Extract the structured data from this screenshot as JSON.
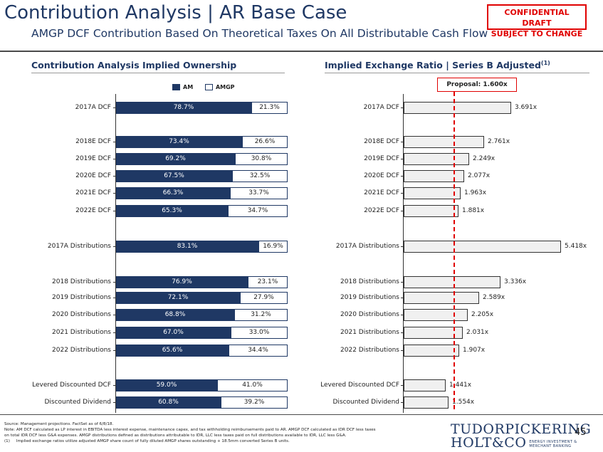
{
  "header": {
    "title": "Contribution Analysis | AR Base Case",
    "subtitle": "AMGP DCF Contribution Based On Theoretical Taxes On All Distributable Cash Flow",
    "confidential_line1": "CONFIDENTIAL DRAFT",
    "confidential_line2": "SUBJECT TO CHANGE"
  },
  "left_section": {
    "title": "Contribution Analysis Implied Ownership",
    "legend": [
      "AM",
      "AMGP"
    ]
  },
  "right_section": {
    "title": "Implied Exchange Ratio | Series B Adjusted",
    "title_sup": "(1)",
    "proposal": "Proposal: 1.600x"
  },
  "chart_data": [
    {
      "type": "bar",
      "stacked": true,
      "orientation": "horizontal",
      "title": "Contribution Analysis Implied Ownership",
      "categories": [
        "2017A DCF",
        "2018E DCF",
        "2019E DCF",
        "2020E DCF",
        "2021E DCF",
        "2022E DCF",
        "2017A Distributions",
        "2018 Distributions",
        "2019 Distributions",
        "2020 Distributions",
        "2021 Distributions",
        "2022 Distributions",
        "Levered Discounted DCF",
        "Discounted Dividend"
      ],
      "series": [
        {
          "name": "AM",
          "values": [
            78.7,
            73.4,
            69.2,
            67.5,
            66.3,
            65.3,
            83.1,
            76.9,
            72.1,
            68.8,
            67.0,
            65.6,
            59.0,
            60.8
          ],
          "color": "#1f3864"
        },
        {
          "name": "AMGP",
          "values": [
            21.3,
            26.6,
            30.8,
            32.5,
            33.7,
            34.7,
            16.9,
            23.1,
            27.9,
            31.2,
            33.0,
            34.4,
            41.0,
            39.2
          ],
          "color": "#ffffff"
        }
      ],
      "labels": {
        "am": [
          "78.7%",
          "73.4%",
          "69.2%",
          "67.5%",
          "66.3%",
          "65.3%",
          "83.1%",
          "76.9%",
          "72.1%",
          "68.8%",
          "67.0%",
          "65.6%",
          "59.0%",
          "60.8%"
        ],
        "amgp": [
          "21.3%",
          "26.6%",
          "30.8%",
          "32.5%",
          "33.7%",
          "34.7%",
          "16.9%",
          "23.1%",
          "27.9%",
          "31.2%",
          "33.0%",
          "34.4%",
          "41.0%",
          "39.2%"
        ]
      },
      "xlim": [
        0,
        100
      ],
      "legend_position": "top"
    },
    {
      "type": "bar",
      "orientation": "horizontal",
      "title": "Implied Exchange Ratio | Series B Adjusted",
      "categories": [
        "2017A DCF",
        "2018E DCF",
        "2019E DCF",
        "2020E DCF",
        "2021E DCF",
        "2022E DCF",
        "2017A Distributions",
        "2018 Distributions",
        "2019 Distributions",
        "2020 Distributions",
        "2021 Distributions",
        "2022 Distributions",
        "Levered Discounted DCF",
        "Discounted Dividend"
      ],
      "values": [
        3.691,
        2.761,
        2.249,
        2.077,
        1.963,
        1.881,
        5.418,
        3.336,
        2.589,
        2.205,
        2.031,
        1.907,
        1.441,
        1.554
      ],
      "value_labels": [
        "3.691x",
        "2.761x",
        "2.249x",
        "2.077x",
        "1.963x",
        "1.881x",
        "5.418x",
        "3.336x",
        "2.589x",
        "2.205x",
        "2.031x",
        "1.907x",
        "1.441x",
        "1.554x"
      ],
      "reference_line": {
        "label": "Proposal: 1.600x",
        "value": 1.6,
        "color": "#e00000"
      },
      "xlim": [
        0,
        5.418
      ]
    }
  ],
  "footer": {
    "source": "Source: Management projections. FactSet as of 6/8/18.",
    "note1": "Note: AM DCF calculated as LP interest in EBITDA less interest expense, maintenance capex, and tax withholding reimbursements paid to AR. AMGP DCF calculated as IDR DCF less taxes",
    "note2": "on total IDR DCF less G&A expenses. AMGP distributions defined as distributions attributable to IDR, LLC less taxes paid on full distributions available to IDR, LLC less G&A.",
    "note3_num": "(1)",
    "note3": "Implied exchange ratios utilize adjusted AMGP share count of fully diluted AMGP shares outstanding + 18.5mm converted Series B units.",
    "logo_line1": "TUDORPICKERING",
    "logo_line2": "HOLT&CO",
    "logo_tag1": "ENERGY INVESTMENT &",
    "logo_tag2": "MERCHANT BANKING",
    "page_number": "45"
  }
}
